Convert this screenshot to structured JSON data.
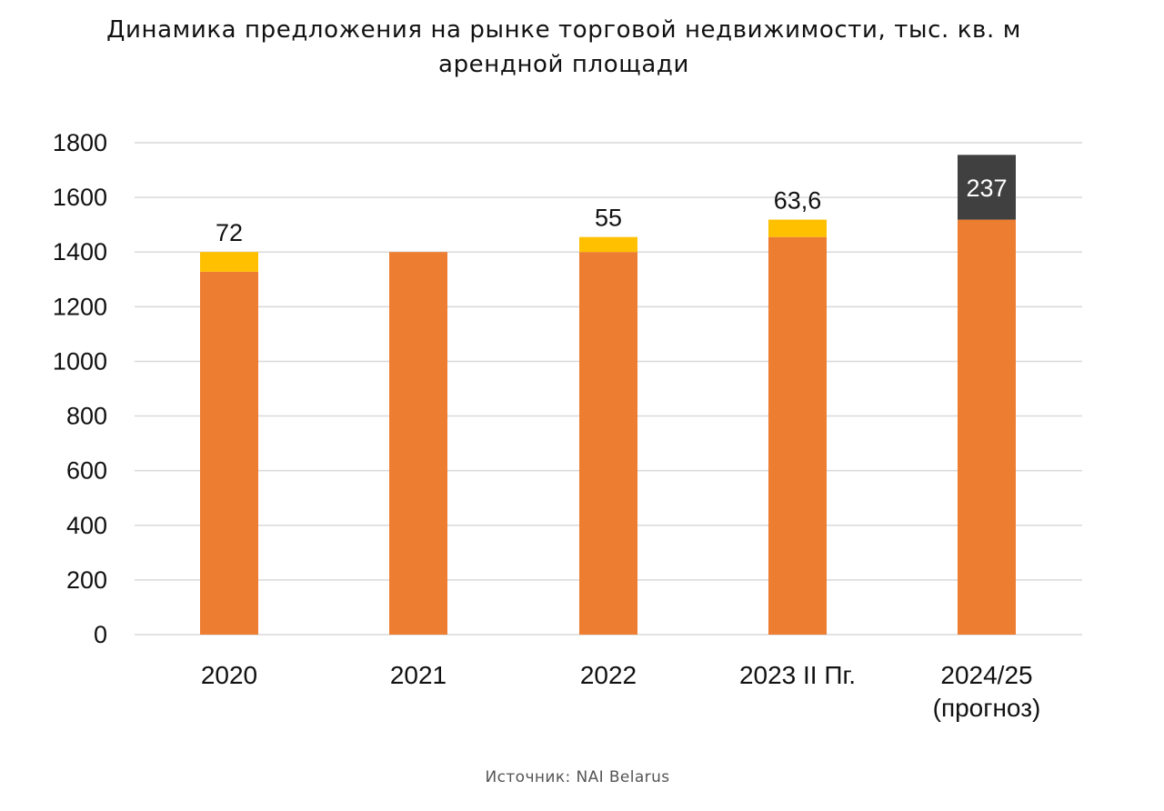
{
  "chart_data": {
    "type": "bar",
    "stacked": true,
    "title_lines": [
      "Динамика предложения на рынке торговой недвижимости, тыс. кв. м",
      "арендной площади"
    ],
    "categories": [
      {
        "lines": [
          "2020"
        ]
      },
      {
        "lines": [
          "2021"
        ]
      },
      {
        "lines": [
          "2022"
        ]
      },
      {
        "lines": [
          "2023 II Пг."
        ]
      },
      {
        "lines": [
          "2024/25",
          "(прогноз)"
        ]
      }
    ],
    "series": [
      {
        "name": "base",
        "color": "#ED7D31",
        "values": [
          1328,
          1400,
          1400,
          1455,
          1518.6
        ],
        "labels": [
          null,
          null,
          null,
          null,
          null
        ]
      },
      {
        "name": "added",
        "color": "#FFC000",
        "values": [
          72,
          0,
          55,
          63.6,
          0
        ],
        "labels": [
          "72",
          null,
          "55",
          "63,6",
          null
        ]
      },
      {
        "name": "forecast",
        "color": "#404040",
        "values": [
          0,
          0,
          0,
          0,
          237
        ],
        "labels": [
          null,
          null,
          null,
          null,
          "237"
        ]
      }
    ],
    "ylim": [
      0,
      1800
    ],
    "yticks": [
      "0",
      "200",
      "400",
      "600",
      "800",
      "1000",
      "1200",
      "1400",
      "1600",
      "1800"
    ],
    "ytick_values": [
      0,
      200,
      400,
      600,
      800,
      1000,
      1200,
      1400,
      1600,
      1800
    ],
    "grid": true,
    "xlabel": "",
    "ylabel": "",
    "legend": "none"
  },
  "source": "Источник: NAI Belarus"
}
